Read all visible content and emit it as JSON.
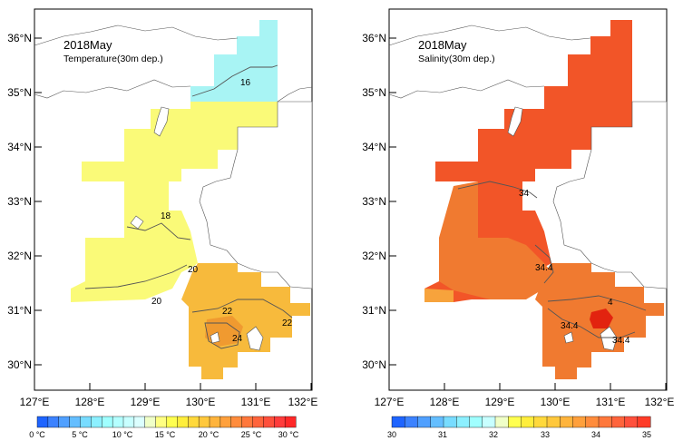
{
  "left_map": {
    "title": "2018May",
    "subtitle": "Temperature(30m dep.)",
    "x_ticks": [
      "127°E",
      "128°E",
      "129°E",
      "130°E",
      "131°E",
      "132°E"
    ],
    "y_ticks": [
      "36°N",
      "35°N",
      "34°N",
      "33°N",
      "32°N",
      "31°N",
      "30°N"
    ],
    "contour_labels": [
      "16",
      "18",
      "20",
      "20",
      "22",
      "22",
      "24"
    ],
    "colorbar": {
      "labels": [
        "0 °C",
        "5 °C",
        "10 °C",
        "15 °C",
        "20 °C",
        "25 °C",
        "30 °C"
      ],
      "colors": [
        "#1e64ff",
        "#3c82ff",
        "#50a0ff",
        "#64beff",
        "#78dcff",
        "#8cf0ff",
        "#a0ffff",
        "#b4ffff",
        "#c8ffff",
        "#dcffff",
        "#f0ffc8",
        "#ffff82",
        "#ffff50",
        "#ffee3c",
        "#ffd93c",
        "#ffc83c",
        "#ffb43c",
        "#ffa03c",
        "#ff8c3c",
        "#ff783c",
        "#ff643c",
        "#ff503c",
        "#ff3c3c",
        "#ff2828"
      ]
    }
  },
  "right_map": {
    "title": "2018May",
    "subtitle": "Salinity(30m dep.)",
    "x_ticks": [
      "127°E",
      "128°E",
      "129°E",
      "130°E",
      "131°E",
      "132°E"
    ],
    "y_ticks": [
      "36°N",
      "35°N",
      "34°N",
      "33°N",
      "32°N",
      "31°N",
      "30°N"
    ],
    "contour_labels": [
      "34",
      "34.4",
      "34.4",
      "34.4",
      "4"
    ],
    "colorbar": {
      "labels": [
        "30",
        "31",
        "32",
        "33",
        "34",
        "35"
      ],
      "colors": [
        "#1e64ff",
        "#3c82ff",
        "#50a0ff",
        "#64beff",
        "#78dcff",
        "#8cf0ff",
        "#a0ffff",
        "#c8ffff",
        "#f0ffc8",
        "#ffff50",
        "#ffee3c",
        "#ffd93c",
        "#ffc83c",
        "#ffb43c",
        "#ffa03c",
        "#ff8c3c",
        "#ff783c",
        "#ff643c",
        "#ff503c",
        "#ff3c28"
      ]
    }
  }
}
